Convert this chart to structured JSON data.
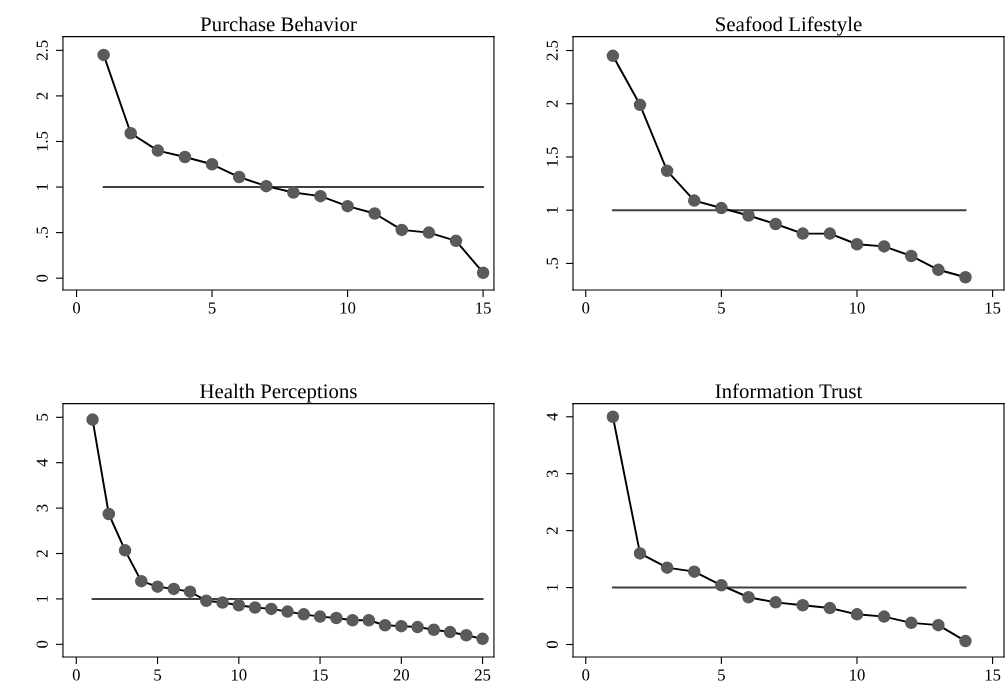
{
  "chart_data": [
    {
      "type": "line",
      "title": "Purchase Behavior",
      "xlim": [
        -0.5,
        15.4
      ],
      "xticks": [
        0,
        5,
        10,
        15
      ],
      "ylim": [
        -0.13,
        2.65
      ],
      "yticks": [
        0,
        {
          "value": 0.5,
          "label": ".5"
        },
        1,
        1.5,
        2,
        2.5
      ],
      "grid": false,
      "series": [
        {
          "marker": "circle",
          "color": "#5a5a5a",
          "x": [
            1,
            2,
            3,
            4,
            5,
            6,
            7,
            8,
            9,
            10,
            11,
            12,
            13,
            14,
            15
          ],
          "values": [
            2.45,
            1.59,
            1.4,
            1.33,
            1.25,
            1.11,
            1.01,
            0.94,
            0.9,
            0.79,
            0.71,
            0.53,
            0.5,
            0.41,
            0.06
          ]
        },
        {
          "marker": "none",
          "color": "#404040",
          "x": [
            1,
            15
          ],
          "values": [
            1,
            1
          ]
        }
      ]
    },
    {
      "type": "line",
      "title": "Seafood Lifestyle",
      "xlim": [
        -0.47,
        15.42
      ],
      "xticks": [
        0,
        5,
        10,
        15
      ],
      "ylim": [
        0.25,
        2.63
      ],
      "yticks": [
        {
          "value": 0.5,
          "label": ".5"
        },
        1,
        1.5,
        2,
        2.5
      ],
      "grid": false,
      "series": [
        {
          "marker": "circle",
          "color": "#5a5a5a",
          "x": [
            1,
            2,
            3,
            4,
            5,
            6,
            7,
            8,
            9,
            10,
            11,
            12,
            13,
            14
          ],
          "values": [
            2.45,
            1.99,
            1.37,
            1.09,
            1.02,
            0.95,
            0.87,
            0.78,
            0.78,
            0.68,
            0.66,
            0.57,
            0.44,
            0.37
          ]
        },
        {
          "marker": "none",
          "color": "#404040",
          "x": [
            1,
            14
          ],
          "values": [
            1,
            1
          ]
        }
      ]
    },
    {
      "type": "line",
      "title": "Health Perceptions",
      "xlim": [
        -0.82,
        25.7
      ],
      "xticks": [
        0,
        5,
        10,
        15,
        20,
        25
      ],
      "ylim": [
        -0.28,
        5.3
      ],
      "yticks": [
        0,
        1,
        2,
        3,
        4,
        5
      ],
      "grid": false,
      "series": [
        {
          "marker": "circle",
          "color": "#5a5a5a",
          "x": [
            1,
            2,
            3,
            4,
            5,
            6,
            7,
            8,
            9,
            10,
            11,
            12,
            13,
            14,
            15,
            16,
            17,
            18,
            19,
            20,
            21,
            22,
            23,
            24,
            25
          ],
          "values": [
            4.95,
            2.87,
            2.07,
            1.39,
            1.27,
            1.22,
            1.16,
            0.96,
            0.92,
            0.86,
            0.81,
            0.78,
            0.72,
            0.66,
            0.61,
            0.58,
            0.53,
            0.53,
            0.42,
            0.4,
            0.38,
            0.32,
            0.27,
            0.2,
            0.12
          ]
        },
        {
          "marker": "none",
          "color": "#404040",
          "x": [
            1,
            25
          ],
          "values": [
            1,
            1
          ]
        }
      ]
    },
    {
      "type": "line",
      "title": "Information Trust",
      "xlim": [
        -0.47,
        15.42
      ],
      "xticks": [
        0,
        5,
        10,
        15
      ],
      "ylim": [
        -0.22,
        4.23
      ],
      "yticks": [
        0,
        1,
        2,
        3,
        4
      ],
      "grid": false,
      "series": [
        {
          "marker": "circle",
          "color": "#5a5a5a",
          "x": [
            1,
            2,
            3,
            4,
            5,
            6,
            7,
            8,
            9,
            10,
            11,
            12,
            13,
            14
          ],
          "values": [
            4.0,
            1.6,
            1.35,
            1.28,
            1.04,
            0.83,
            0.74,
            0.69,
            0.64,
            0.53,
            0.49,
            0.38,
            0.34,
            0.06
          ]
        },
        {
          "marker": "none",
          "color": "#404040",
          "x": [
            1,
            14
          ],
          "values": [
            1,
            1
          ]
        }
      ]
    }
  ]
}
